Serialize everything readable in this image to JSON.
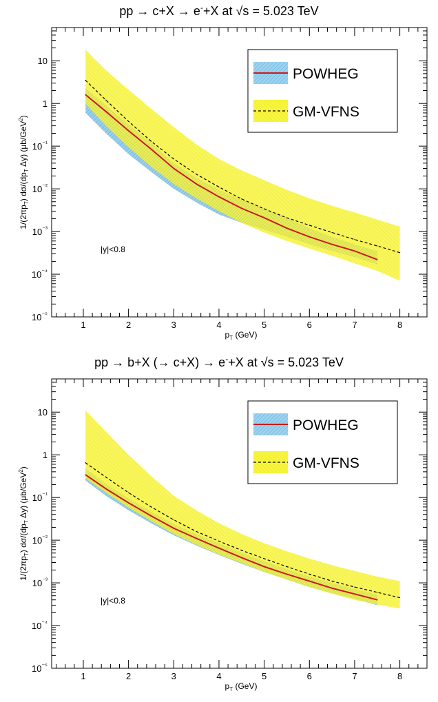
{
  "chart_data": [
    {
      "type": "line",
      "title": "pp → c+X → e+X at √s = 5.023 TeV",
      "title_superscript": "-",
      "xlabel": "p_T (GeV)",
      "ylabel": "1/(2πp_T) dσ/(dp_T Δy) (μb/GeV²)",
      "xlim": [
        0.3,
        8.6
      ],
      "ylim": [
        1e-05,
        60
      ],
      "yscale": "log",
      "x_ticks": [
        "1",
        "2",
        "3",
        "4",
        "5",
        "6",
        "7",
        "8"
      ],
      "y_ticks": [
        "10⁻⁵",
        "10⁻⁴",
        "10⁻³",
        "10⁻²",
        "10⁻¹",
        "1",
        "10"
      ],
      "annotation": "|y|<0.8",
      "legend_position": "top-right",
      "colors": {
        "powheg_band": "#9fd2ee",
        "powheg_line": "#cc1a1a",
        "gmvfns_band": "#f8f53a",
        "gmvfns_line": "#000000"
      },
      "series": [
        {
          "name": "POWHEG",
          "x": [
            1.05,
            1.5,
            2.0,
            2.5,
            3.0,
            3.5,
            4.0,
            4.5,
            5.0,
            5.5,
            6.0,
            6.5,
            7.0,
            7.5
          ],
          "y": [
            1.6,
            0.65,
            0.23,
            0.085,
            0.03,
            0.013,
            0.0065,
            0.0035,
            0.0021,
            0.0012,
            0.00075,
            0.0005,
            0.00035,
            0.00022
          ],
          "y_low": [
            0.6,
            0.2,
            0.065,
            0.025,
            0.01,
            0.0048,
            0.0025,
            0.0016,
            0.0011,
            0.00075,
            0.0005,
            0.00035,
            0.00025,
            0.00017
          ],
          "y_high": [
            2.3,
            0.9,
            0.32,
            0.12,
            0.04,
            0.018,
            0.0095,
            0.0055,
            0.0034,
            0.0021,
            0.0012,
            0.00075,
            0.0005,
            0.00035
          ]
        },
        {
          "name": "GM-VFNS",
          "x": [
            1.05,
            1.5,
            2.0,
            2.5,
            3.0,
            3.5,
            4.0,
            4.5,
            5.0,
            5.5,
            6.0,
            6.5,
            7.0,
            7.5,
            8.0
          ],
          "y": [
            3.5,
            1.2,
            0.38,
            0.13,
            0.05,
            0.022,
            0.011,
            0.0058,
            0.0034,
            0.0021,
            0.0014,
            0.00095,
            0.00065,
            0.00046,
            0.00032
          ],
          "y_low": [
            1.0,
            0.3,
            0.095,
            0.033,
            0.013,
            0.006,
            0.003,
            0.0016,
            0.00095,
            0.0006,
            0.0004,
            0.00027,
            0.00018,
            0.00012,
            7e-05
          ],
          "y_high": [
            18,
            6.0,
            2.1,
            0.75,
            0.28,
            0.11,
            0.05,
            0.027,
            0.016,
            0.0095,
            0.006,
            0.004,
            0.0028,
            0.0019,
            0.0013
          ]
        }
      ]
    },
    {
      "type": "line",
      "title": "pp → b+X (→ c+X) → e+X at √s = 5.023 TeV",
      "title_superscript": "-",
      "xlabel": "p_T (GeV)",
      "ylabel": "1/(2πp_T) dσ/(dp_T Δy) (μb/GeV²)",
      "xlim": [
        0.3,
        8.6
      ],
      "ylim": [
        1e-05,
        60
      ],
      "yscale": "log",
      "x_ticks": [
        "1",
        "2",
        "3",
        "4",
        "5",
        "6",
        "7",
        "8"
      ],
      "y_ticks": [
        "10⁻⁵",
        "10⁻⁴",
        "10⁻³",
        "10⁻²",
        "10⁻¹",
        "1",
        "10"
      ],
      "annotation": "|y|<0.8",
      "legend_position": "top-right",
      "colors": {
        "powheg_band": "#9fd2ee",
        "powheg_line": "#cc1a1a",
        "gmvfns_band": "#f8f53a",
        "gmvfns_line": "#000000"
      },
      "series": [
        {
          "name": "POWHEG",
          "x": [
            1.05,
            1.5,
            2.0,
            2.5,
            3.0,
            3.5,
            4.0,
            4.5,
            5.0,
            5.5,
            6.0,
            6.5,
            7.0,
            7.5
          ],
          "y": [
            0.34,
            0.16,
            0.075,
            0.037,
            0.019,
            0.011,
            0.0065,
            0.0039,
            0.0024,
            0.0016,
            0.0011,
            0.00075,
            0.00055,
            0.0004
          ],
          "y_low": [
            0.25,
            0.11,
            0.05,
            0.025,
            0.013,
            0.0075,
            0.0045,
            0.0028,
            0.0018,
            0.0012,
            0.0008,
            0.00057,
            0.00042,
            0.0003
          ],
          "y_high": [
            0.48,
            0.21,
            0.095,
            0.047,
            0.024,
            0.014,
            0.0085,
            0.0051,
            0.0032,
            0.0021,
            0.0014,
            0.001,
            0.00072,
            0.00053
          ]
        },
        {
          "name": "GM-VFNS",
          "x": [
            1.05,
            1.5,
            2.0,
            2.5,
            3.0,
            3.5,
            4.0,
            4.5,
            5.0,
            5.5,
            6.0,
            6.5,
            7.0,
            7.5,
            8.0
          ],
          "y": [
            0.65,
            0.3,
            0.13,
            0.06,
            0.03,
            0.016,
            0.0095,
            0.0058,
            0.0037,
            0.0024,
            0.0016,
            0.0011,
            0.0008,
            0.0006,
            0.00045
          ],
          "y_low": [
            0.28,
            0.13,
            0.058,
            0.028,
            0.014,
            0.0078,
            0.0046,
            0.0029,
            0.0018,
            0.0012,
            0.0008,
            0.00056,
            0.0004,
            0.00031,
            0.00025
          ],
          "y_high": [
            11,
            3.5,
            1.0,
            0.32,
            0.11,
            0.05,
            0.025,
            0.014,
            0.0085,
            0.0055,
            0.0037,
            0.0026,
            0.0019,
            0.0014,
            0.0011
          ]
        }
      ]
    }
  ]
}
